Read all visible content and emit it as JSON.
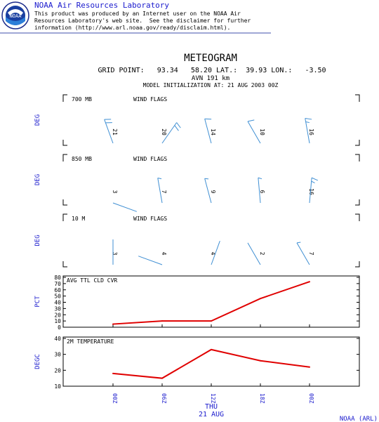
{
  "header": {
    "org": "NOAA Air Resources Laboratory",
    "disclaimer_lines": [
      "This product was produced by an Internet user on the NOAA Air",
      "Resources Laboratory's web site.  See the disclaimer for further",
      "information (http://www.arl.noaa.gov/ready/disclaim.html)."
    ],
    "logo_text": "NOAA"
  },
  "title": {
    "main": "METEOGRAM",
    "line1": "GRID POINT:   93.34   58.20 LAT.:  39.93 LON.:   -3.50",
    "line2": "AVN 191 km",
    "line3": "MODEL INITIALIZATION AT: 21 AUG 2003 00Z"
  },
  "footer": {
    "credit": "NOAA (ARL)"
  },
  "colors": {
    "axis_label": "#1a1acd",
    "barb": "#3f8fd3",
    "line": "#e00000"
  },
  "chart_data": [
    {
      "type": "wind-barb",
      "title": "700 MB",
      "subtitle": "WIND FLAGS",
      "ylabel": "DEG",
      "x": [
        "00Z",
        "06Z",
        "12Z",
        "18Z",
        "00Z"
      ],
      "speed": [
        21,
        20,
        14,
        10,
        16
      ],
      "speed_labels": [
        "21",
        "20",
        "14",
        "10",
        "16"
      ],
      "direction_deg": [
        340,
        35,
        345,
        330,
        350
      ]
    },
    {
      "type": "wind-barb",
      "title": "850 MB",
      "subtitle": "WIND FLAGS",
      "ylabel": "DEG",
      "x": [
        "00Z",
        "06Z",
        "12Z",
        "18Z",
        "00Z"
      ],
      "speed": [
        3,
        7,
        9,
        6,
        16
      ],
      "speed_labels": [
        "3",
        "7",
        "9",
        "6",
        "16"
      ],
      "direction_deg": [
        110,
        350,
        345,
        355,
        5
      ]
    },
    {
      "type": "wind-barb",
      "title": "10 M",
      "subtitle": "WIND FLAGS",
      "ylabel": "DEG",
      "x": [
        "00Z",
        "06Z",
        "12Z",
        "18Z",
        "00Z"
      ],
      "speed": [
        3,
        4,
        4,
        2,
        7
      ],
      "speed_labels": [
        "3",
        "4",
        "4",
        "2",
        "7"
      ],
      "direction_deg": [
        0,
        290,
        20,
        330,
        330
      ]
    },
    {
      "type": "line",
      "title": "AVG TTL CLD CVR",
      "ylabel": "PCT",
      "x": [
        "00Z",
        "06Z",
        "12Z",
        "18Z",
        "00Z"
      ],
      "values": [
        5,
        10,
        10,
        46,
        73
      ],
      "ylim": [
        0,
        80
      ],
      "yticks": [
        0,
        10,
        20,
        30,
        40,
        50,
        60,
        70,
        80
      ]
    },
    {
      "type": "line",
      "title": "2M TEMPERATURE",
      "ylabel": "DEGC",
      "x": [
        "00Z",
        "06Z",
        "12Z",
        "18Z",
        "00Z"
      ],
      "values": [
        18,
        15,
        33,
        26,
        22
      ],
      "ylim": [
        10,
        40
      ],
      "yticks": [
        10,
        20,
        30,
        40
      ]
    }
  ],
  "time_axis": {
    "ticks": [
      "00Z",
      "06Z",
      "12Z",
      "18Z",
      "00Z"
    ],
    "day": "THU",
    "date": "21 AUG"
  }
}
